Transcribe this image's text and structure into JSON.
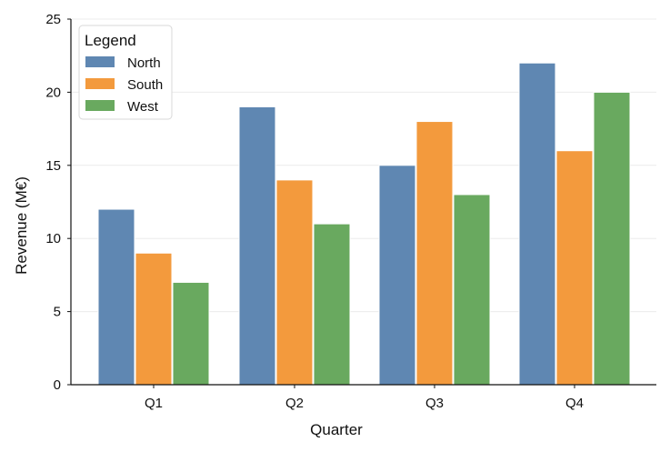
{
  "chart_data": {
    "type": "bar",
    "title": "",
    "xlabel": "Quarter",
    "ylabel": "Revenue (M€)",
    "categories": [
      "Q1",
      "Q2",
      "Q3",
      "Q4"
    ],
    "series": [
      {
        "name": "North",
        "values": [
          12,
          19,
          15,
          22
        ],
        "color": "#5f87b2"
      },
      {
        "name": "South",
        "values": [
          9,
          14,
          18,
          16
        ],
        "color": "#f39a3d"
      },
      {
        "name": "West",
        "values": [
          7,
          11,
          13,
          20
        ],
        "color": "#69a95f"
      }
    ],
    "ylim": [
      0,
      25
    ],
    "yticks": [
      "0",
      "5",
      "10",
      "15",
      "20",
      "25"
    ],
    "grid": true,
    "legend": {
      "title": "Legend",
      "placement": "top-left"
    }
  }
}
